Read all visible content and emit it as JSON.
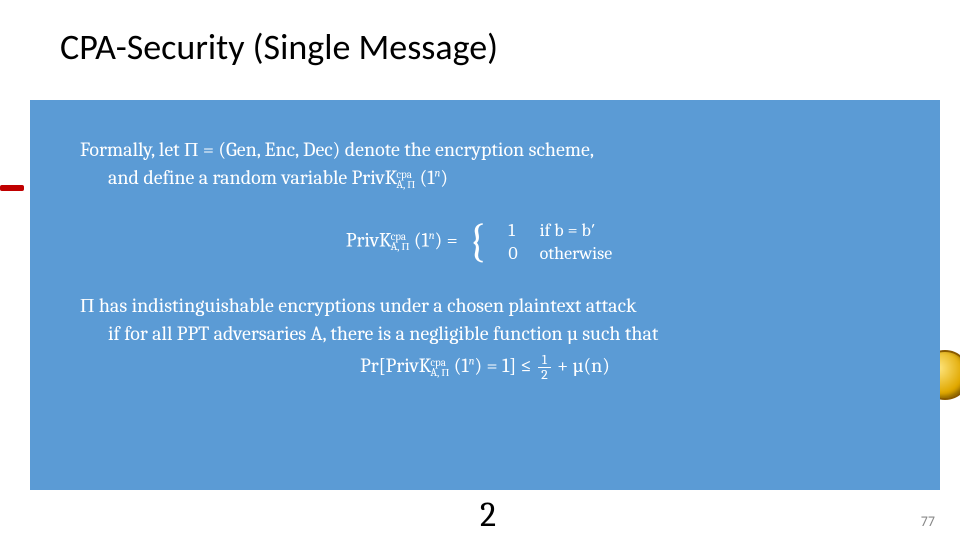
{
  "title": "CPA-Security (Single Message)",
  "page_number": "77",
  "bottom_fragment": "2",
  "box": {
    "line1a": "Formally, let Π =  (Gen, Enc, Dec) denote the encryption scheme,",
    "line1b": "and define a random variable PrivK",
    "line1b_sup": "cpa",
    "line1b_sub": "A, Π",
    "line1b_tail": " (1",
    "line1b_tailn": "n",
    "line1b_tail2": ")",
    "def_lhs_a": "PrivK",
    "def_sup": "cpa",
    "def_sub": "A, Π",
    "def_lhs_b": " (1",
    "def_lhs_n": "n",
    "def_lhs_c": ") = ",
    "case1_v": "1",
    "case1_t": "if b = b′",
    "case2_v": "0",
    "case2_t": "otherwise",
    "line2a": "Π has indistinguishable encryptions under a chosen plaintext attack",
    "line2b": "if for all PPT adversaries A, there is a negligible function µ such that",
    "final_a": "Pr[PrivK",
    "final_sup": "cpa",
    "final_sub": "A, Π",
    "final_b": " (1",
    "final_n": "n",
    "final_c": ") = 1] ≤ ",
    "final_frac_num": "1",
    "final_frac_den": "2",
    "final_d": " + µ(n)"
  },
  "colors": {
    "box_bg": "#5b9bd5",
    "title_color": "#000000",
    "text_color": "#ffffff"
  }
}
